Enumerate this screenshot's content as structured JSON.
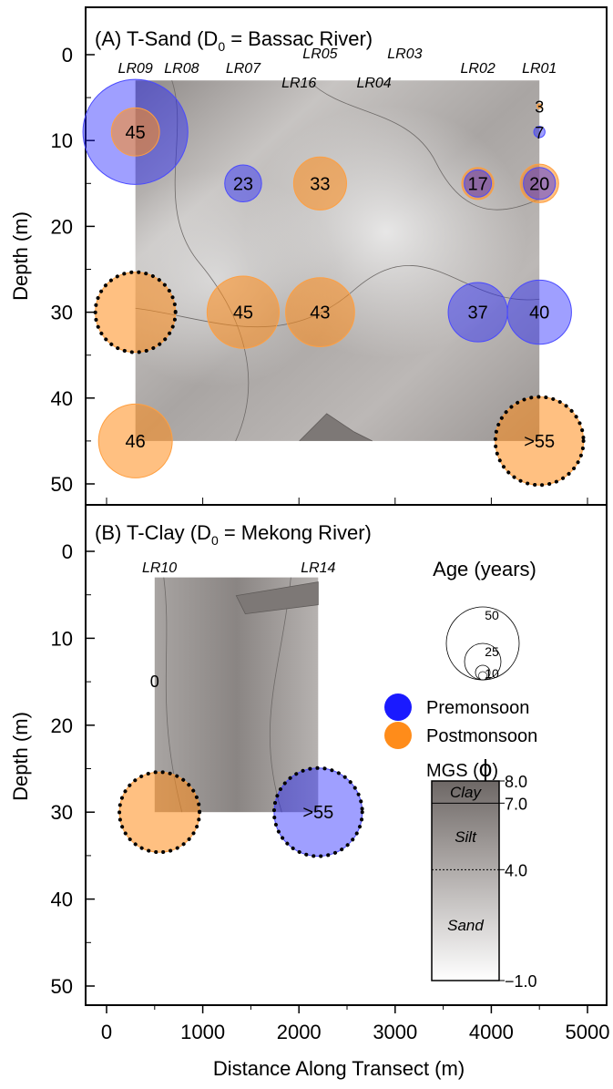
{
  "chart_data": {
    "type": "scatter",
    "x_axis": {
      "label": "Distance Along Transect (m)",
      "range": [
        -200,
        5200
      ],
      "ticks": [
        "0",
        "1000",
        "2000",
        "3000",
        "4000",
        "5000"
      ],
      "tick_values": [
        0,
        1000,
        2000,
        3000,
        4000,
        5000
      ]
    },
    "legend": {
      "age_title": "Age (years)",
      "age_sizes": [
        {
          "label": "50",
          "value": 50
        },
        {
          "label": "25",
          "value": 25
        },
        {
          "label": "10",
          "value": 10
        }
      ],
      "premonsoon": {
        "label": "Premonsoon",
        "color": "#1a1aff"
      },
      "postmonsoon": {
        "label": "Postmonsoon",
        "color": "#ff8c1a"
      },
      "mgs_label": "MGS (",
      "mgs_phi": "ϕ",
      "mgs_close": ")",
      "scale_ticks": [
        {
          "label": "8.0",
          "value": 8.0
        },
        {
          "label": "7.0",
          "value": 7.0
        },
        {
          "label": "4.0",
          "value": 4.0
        },
        {
          "label": "−1.0",
          "value": -1.0
        }
      ],
      "scale_classes": [
        {
          "label": "Clay",
          "value": 7.5
        },
        {
          "label": "Silt",
          "value": 5.5
        },
        {
          "label": "Sand",
          "value": 1.5
        }
      ]
    },
    "panels": [
      {
        "id": "A",
        "title_main": "(A) T-Sand (D",
        "title_sub": "0",
        "title_end": " = Bassac River)",
        "y_axis": {
          "label": "Depth (m)",
          "range": [
            55,
            -6
          ],
          "ticks": [
            "0",
            "10",
            "20",
            "30",
            "40",
            "50"
          ],
          "tick_values": [
            0,
            10,
            20,
            30,
            40,
            50
          ]
        },
        "mgs_region": {
          "x": [
            300,
            4500
          ],
          "depth": [
            3,
            45
          ]
        },
        "wells": [
          {
            "name": "LR09",
            "x": 300,
            "label_row": 0
          },
          {
            "name": "LR08",
            "x": 780,
            "label_row": 0
          },
          {
            "name": "LR07",
            "x": 1420,
            "label_row": 0
          },
          {
            "name": "LR16",
            "x": 2000,
            "label_row": 1
          },
          {
            "name": "LR05",
            "x": 2220,
            "label_row": -1
          },
          {
            "name": "LR04",
            "x": 2780,
            "label_row": 1
          },
          {
            "name": "LR03",
            "x": 3100,
            "label_row": -1
          },
          {
            "name": "LR02",
            "x": 3860,
            "label_row": 0
          },
          {
            "name": "LR01",
            "x": 4500,
            "label_row": 0
          }
        ],
        "points": [
          {
            "x": 300,
            "depth": 9,
            "age": 45,
            "label": "45",
            "season": "pre",
            "extra_radius": 18
          },
          {
            "x": 300,
            "depth": 9,
            "age": 30,
            "season": "post"
          },
          {
            "x": 1420,
            "depth": 15,
            "age": 23,
            "label": "23",
            "season": "pre"
          },
          {
            "x": 2220,
            "depth": 15,
            "age": 33,
            "label": "33",
            "season": "post"
          },
          {
            "x": 3860,
            "depth": 15,
            "age": 20,
            "season": "post"
          },
          {
            "x": 3860,
            "depth": 15,
            "age": 17,
            "label": "17",
            "season": "pre"
          },
          {
            "x": 4500,
            "depth": 15,
            "age": 24,
            "season": "post"
          },
          {
            "x": 4500,
            "depth": 15,
            "age": 20,
            "label": "20",
            "season": "pre"
          },
          {
            "x": 4500,
            "depth": 6,
            "age": 3,
            "label": "3",
            "season": "post"
          },
          {
            "x": 4500,
            "depth": 9,
            "age": 7,
            "label": "7",
            "season": "pre"
          },
          {
            "x": 300,
            "depth": 30,
            "age": 50,
            "season": "post",
            "censored": true
          },
          {
            "x": 1420,
            "depth": 30,
            "age": 45,
            "label": "45",
            "season": "post"
          },
          {
            "x": 2220,
            "depth": 30,
            "age": 43,
            "label": "43",
            "season": "post"
          },
          {
            "x": 3860,
            "depth": 30,
            "age": 37,
            "label": "37",
            "season": "pre"
          },
          {
            "x": 4500,
            "depth": 30,
            "age": 40,
            "label": "40",
            "season": "pre"
          },
          {
            "x": 300,
            "depth": 45,
            "age": 46,
            "label": "46",
            "season": "post"
          },
          {
            "x": 4500,
            "depth": 45,
            "age": 55,
            "label": ">55",
            "season": "post",
            "censored": true
          }
        ],
        "contour_labels": []
      },
      {
        "id": "B",
        "title_main": "(B) T-Clay (D",
        "title_sub": "0",
        "title_end": " = Mekong River)",
        "y_axis": {
          "label": "Depth (m)",
          "range": [
            55,
            -6
          ],
          "ticks": [
            "0",
            "10",
            "20",
            "30",
            "40",
            "50"
          ],
          "tick_values": [
            0,
            10,
            20,
            30,
            40,
            50
          ]
        },
        "mgs_region": {
          "x": [
            500,
            2200
          ],
          "depth": [
            3,
            30
          ]
        },
        "wells": [
          {
            "name": "LR10",
            "x": 550,
            "label_row": 0
          },
          {
            "name": "LR14",
            "x": 2200,
            "label_row": 0
          }
        ],
        "points": [
          {
            "x": 550,
            "depth": 30,
            "age": 50,
            "season": "post",
            "censored": true
          },
          {
            "x": 2200,
            "depth": 30,
            "age": 55,
            "label": ">55",
            "season": "pre",
            "censored": true
          }
        ],
        "contour_labels": [
          {
            "label": "0",
            "x": 500,
            "depth": 15
          }
        ]
      }
    ]
  }
}
